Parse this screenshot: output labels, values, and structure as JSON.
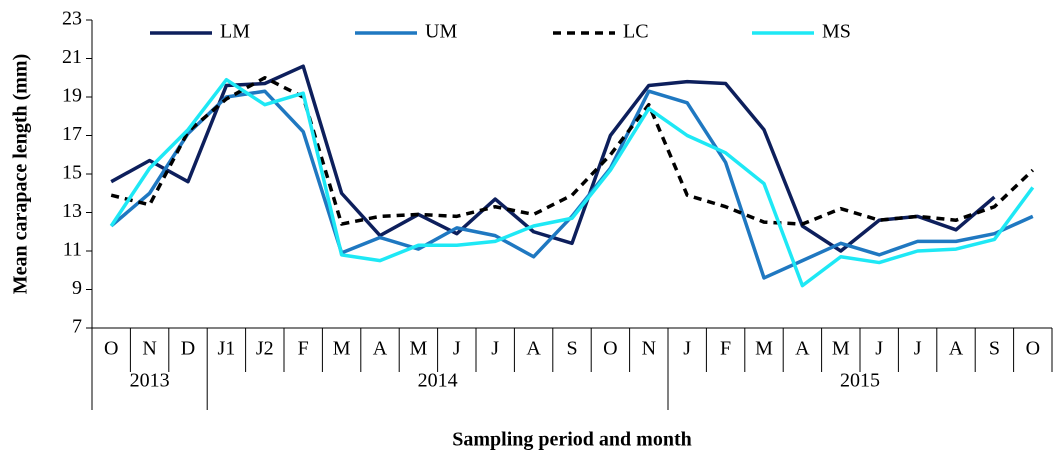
{
  "chart_data": {
    "type": "line",
    "y_label": "Mean carapace length (mm)",
    "x_label": "Sampling period and month",
    "categories": [
      "O",
      "N",
      "D",
      "J1",
      "J2",
      "F",
      "M",
      "A",
      "M",
      "J",
      "J",
      "A",
      "S",
      "O",
      "N",
      "J",
      "F",
      "M",
      "A",
      "M",
      "J",
      "J",
      "A",
      "S",
      "O"
    ],
    "year_groups": [
      {
        "label": "2013",
        "span": 3
      },
      {
        "label": "2014",
        "span": 12
      },
      {
        "label": "2015",
        "span": 10
      }
    ],
    "ylim": [
      7,
      23
    ],
    "yticks": [
      7,
      9,
      11,
      13,
      15,
      17,
      19,
      21,
      23
    ],
    "legend": "top",
    "series": [
      {
        "name": "LM",
        "color": "#0d1f5c",
        "dash": false,
        "values": [
          14.6,
          15.7,
          14.6,
          19.6,
          19.7,
          20.6,
          14.0,
          11.8,
          12.9,
          11.9,
          13.7,
          12.0,
          11.4,
          17.0,
          19.6,
          19.8,
          19.7,
          17.3,
          12.3,
          11.0,
          12.6,
          12.8,
          12.1,
          13.8,
          null
        ]
      },
      {
        "name": "UM",
        "color": "#1f78c1",
        "dash": false,
        "values": [
          12.3,
          14.0,
          17.1,
          19.0,
          19.3,
          17.2,
          10.9,
          11.7,
          11.1,
          12.2,
          11.8,
          10.7,
          12.8,
          15.3,
          19.3,
          18.7,
          15.6,
          9.6,
          10.5,
          11.4,
          10.8,
          11.5,
          11.5,
          11.9,
          12.8
        ]
      },
      {
        "name": "LC",
        "color": "#000000",
        "dash": true,
        "values": [
          13.9,
          13.4,
          17.2,
          18.9,
          20.0,
          19.0,
          12.4,
          12.8,
          12.9,
          12.8,
          13.3,
          12.9,
          13.9,
          16.0,
          18.6,
          13.9,
          13.3,
          12.5,
          12.4,
          13.2,
          12.6,
          12.8,
          12.6,
          13.3,
          15.2
        ]
      },
      {
        "name": "MS",
        "color": "#1ee8f5",
        "dash": false,
        "values": [
          12.3,
          15.3,
          17.3,
          19.9,
          18.6,
          19.2,
          10.8,
          10.5,
          11.3,
          11.3,
          11.5,
          12.3,
          12.7,
          15.2,
          18.4,
          17.0,
          16.1,
          14.5,
          9.2,
          10.7,
          10.4,
          11.0,
          11.1,
          11.6,
          14.3
        ]
      }
    ]
  }
}
